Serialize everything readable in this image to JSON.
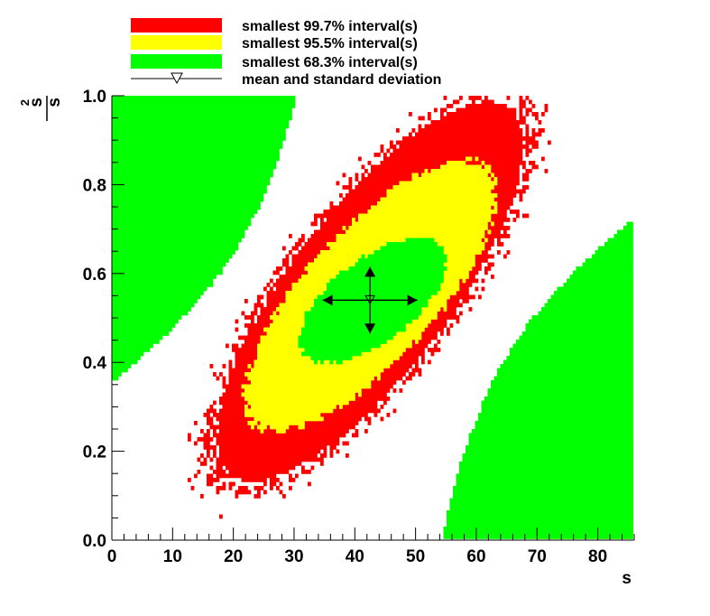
{
  "chart_data": {
    "type": "heatmap",
    "title": "",
    "xlabel": "s",
    "ylabel": {
      "numerator": "s",
      "subscript": "2",
      "denominator": "s"
    },
    "xlim": [
      0,
      86
    ],
    "ylim": [
      0.0,
      1.0
    ],
    "x_ticks": [
      0,
      10,
      20,
      30,
      40,
      50,
      60,
      70,
      80
    ],
    "y_ticks": [
      "0.0",
      "0.2",
      "0.4",
      "0.6",
      "0.8",
      "1.0"
    ],
    "legend": [
      {
        "label": "smallest 99.7% interval(s)",
        "color": "#ff0000",
        "kind": "box"
      },
      {
        "label": "smallest 95.5% interval(s)",
        "color": "#ffff00",
        "kind": "box"
      },
      {
        "label": "smallest 68.3% interval(s)",
        "color": "#00ff00",
        "kind": "box"
      },
      {
        "label": "mean and standard deviation",
        "color": "#000000",
        "kind": "marker"
      }
    ],
    "regions": [
      {
        "level": "99.7%",
        "color": "#ff0000",
        "center": [
          42.5,
          0.56
        ],
        "rx": 27,
        "ry": 0.29,
        "skew": -0.0007
      },
      {
        "level": "95.5%",
        "color": "#ffff00",
        "center": [
          42.5,
          0.55
        ],
        "rx": 20.5,
        "ry": 0.2,
        "skew": -0.0006
      },
      {
        "level": "68.3%",
        "color": "#00ff00",
        "center": [
          43.0,
          0.54
        ],
        "rx": 12,
        "ry": 0.11,
        "skew": -0.0004
      }
    ],
    "mean": {
      "x": 42.5,
      "y": 0.54
    },
    "std": {
      "x": 7.8,
      "y": 0.075
    }
  }
}
